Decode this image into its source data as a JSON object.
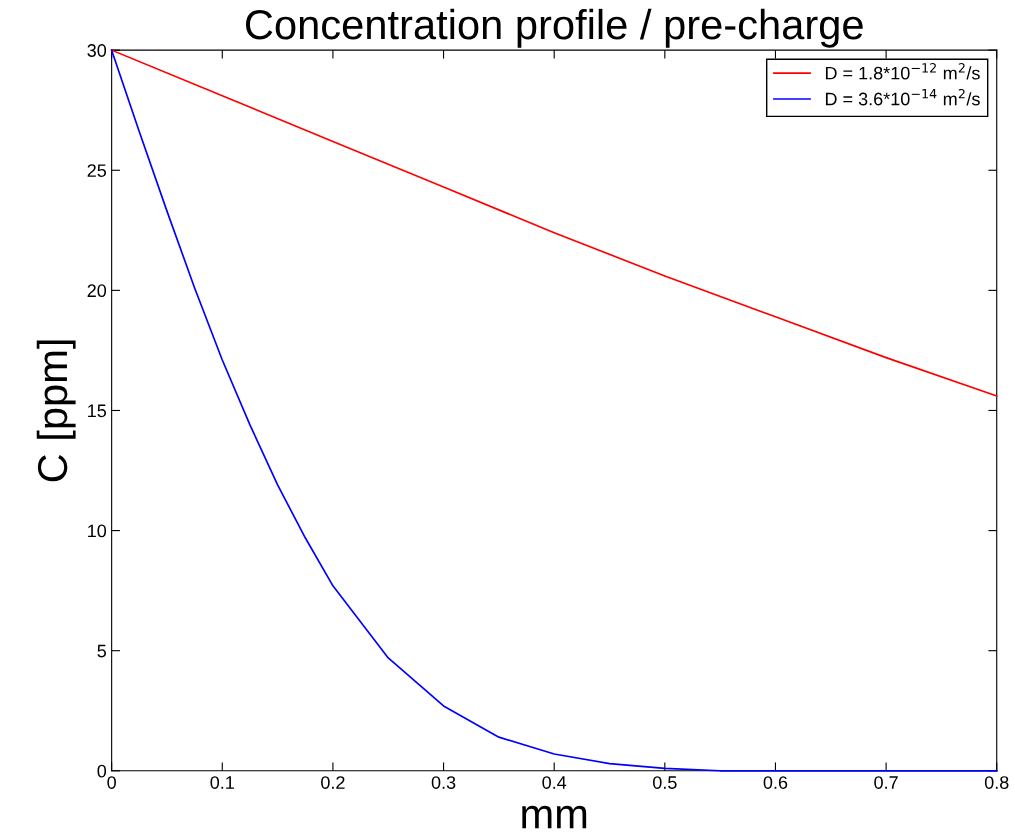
{
  "chart_data": {
    "type": "line",
    "title": "Concentration profile / pre-charge",
    "xlabel": "mm",
    "ylabel": "C [ppm]",
    "xlim": [
      0,
      0.8
    ],
    "ylim": [
      0,
      30
    ],
    "xticks": [
      0,
      0.1,
      0.2,
      0.3,
      0.4,
      0.5,
      0.6,
      0.7,
      0.8
    ],
    "yticks": [
      0,
      5,
      10,
      15,
      20,
      25,
      30
    ],
    "grid": false,
    "legend": "top right",
    "marker": "none",
    "line_style": "solid",
    "series": [
      {
        "name": "D = 1.8*10$^{−12}$ m$^{2}$/s",
        "color": "#ff0000",
        "x": [
          0,
          0.1,
          0.2,
          0.3,
          0.4,
          0.5,
          0.6,
          0.7,
          0.8
        ],
        "values": [
          30,
          28.1,
          26.2,
          24.3,
          22.4,
          20.6,
          18.9,
          17.2,
          15.6
        ]
      },
      {
        "name": "D = 3.6*10$^{−14}$ m$^{2}$/s",
        "color": "#0000ff",
        "x": [
          0,
          0.025,
          0.05,
          0.075,
          0.1,
          0.125,
          0.15,
          0.175,
          0.2,
          0.25,
          0.3,
          0.35,
          0.4,
          0.45,
          0.5,
          0.55,
          0.6,
          0.7,
          0.8
        ],
        "values": [
          30,
          26.6,
          23.3,
          20.1,
          17.1,
          14.4,
          11.9,
          9.7,
          7.7,
          4.7,
          2.7,
          1.4,
          0.7,
          0.3,
          0.1,
          0,
          0,
          0,
          0
        ]
      }
    ]
  }
}
